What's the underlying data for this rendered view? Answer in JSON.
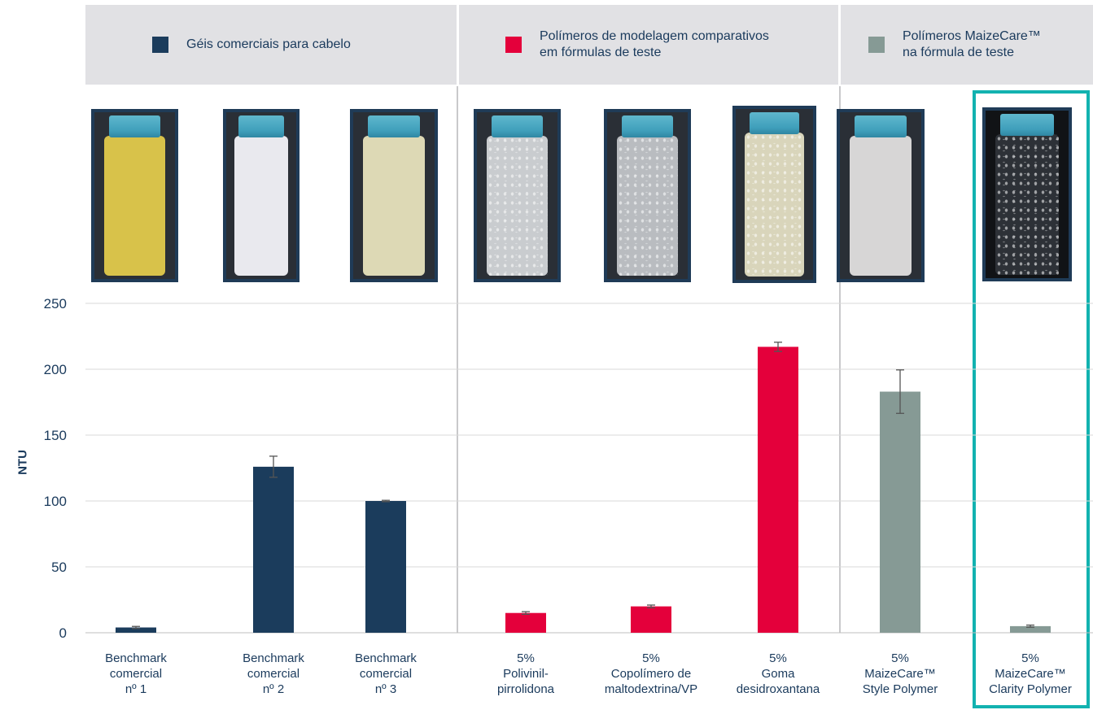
{
  "legend": [
    {
      "label": "Géis comerciais para cabelo",
      "color": "#1b3c5c"
    },
    {
      "label": "Polímeros de modelagem comparativos\nem fórmulas de teste",
      "color": "#e4003b"
    },
    {
      "label": "Polímeros MaizeCare™\nna fórmula de teste",
      "color": "#869a95"
    }
  ],
  "colors": {
    "commercial": "#1b3c5c",
    "comparative": "#e4003b",
    "maizecare": "#869a95",
    "highlight": "#12b2b0",
    "gridline": "#d9d9d9",
    "text": "#1a3a5c"
  },
  "jars": [
    {
      "name": "jar-benchmark-1-icon",
      "liquid": "#d8c24a",
      "tex": false
    },
    {
      "name": "jar-benchmark-2-icon",
      "liquid": "#e9e9ee",
      "tex": false
    },
    {
      "name": "jar-benchmark-3-icon",
      "liquid": "#ddd9b5",
      "tex": false
    },
    {
      "name": "jar-polivinilpirrolidona-icon",
      "liquid": "#c9cccf",
      "tex": true
    },
    {
      "name": "jar-copolimero-icon",
      "liquid": "#b9bcc0",
      "tex": true
    },
    {
      "name": "jar-goma-icon",
      "liquid": "#d9d5bb",
      "tex": true
    },
    {
      "name": "jar-maizecare-style-icon",
      "liquid": "#d7d6d6",
      "tex": false
    },
    {
      "name": "jar-maizecare-clarity-icon",
      "liquid": "#2d3137",
      "tex": true
    }
  ],
  "chart_data": {
    "type": "bar",
    "ylabel": "NTU",
    "ylim": [
      0,
      250
    ],
    "yticks": [
      "0",
      "50",
      "100",
      "150",
      "200",
      "250"
    ],
    "grid": true,
    "categories": [
      "Benchmark\ncomercial\nnº 1",
      "Benchmark\ncomercial\nnº 2",
      "Benchmark\ncomercial\nnº 3",
      "5%\nPolivinil-\npirrolidona",
      "5%\nCopolímero de\nmaltodextrina/VP",
      "5%\nGoma\ndesidroxantana",
      "5%\nMaizeCare™\nStyle Polymer",
      "5%\nMaizeCare™\nClarity Polymer"
    ],
    "values": [
      4,
      126,
      100,
      15,
      20,
      217,
      183,
      5
    ],
    "errors": [
      0.8,
      8,
      0.5,
      1,
      1,
      3.5,
      16.5,
      0.8
    ],
    "groups": [
      "commercial",
      "commercial",
      "commercial",
      "comparative",
      "comparative",
      "comparative",
      "maizecare",
      "maizecare"
    ],
    "legend_position": "top"
  }
}
